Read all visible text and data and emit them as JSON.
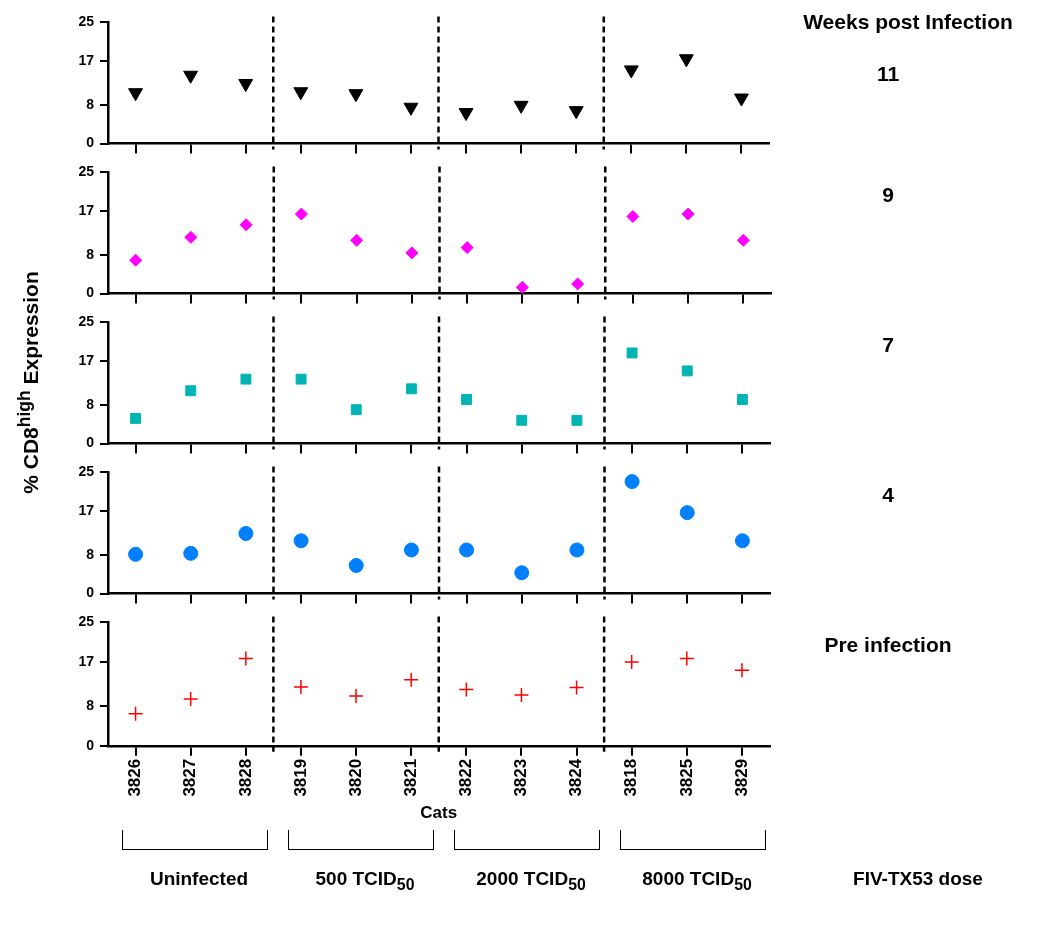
{
  "chart_data": [
    {
      "type": "scatter",
      "annotations": [
        "Weeks post Infection",
        "11"
      ],
      "categories": [
        "3826",
        "3827",
        "3828",
        "3819",
        "3820",
        "3821",
        "3822",
        "3823",
        "3824",
        "3818",
        "3825",
        "3829"
      ],
      "series": [
        {
          "color": "#000000",
          "values": [
            10.5,
            14.1,
            12.4,
            10.7,
            10.3,
            7.5,
            6.4,
            7.9,
            6.8,
            15.2,
            17.5,
            9.4
          ]
        }
      ],
      "marker": "triangle",
      "ylim": [
        0,
        25
      ],
      "yticks": [
        0,
        8,
        17,
        25
      ],
      "tick_labels": "y",
      "grid": false,
      "legend": false
    },
    {
      "type": "scatter",
      "annotations": [
        "9"
      ],
      "categories": [
        "3826",
        "3827",
        "3828",
        "3819",
        "3820",
        "3821",
        "3822",
        "3823",
        "3824",
        "3818",
        "3825",
        "3829"
      ],
      "series": [
        {
          "color": "#ff00ff",
          "values": [
            6.9,
            11.6,
            14.2,
            16.4,
            11.0,
            8.4,
            9.5,
            1.3,
            2.0,
            15.9,
            16.4,
            11.0
          ]
        }
      ],
      "marker": "diamond",
      "ylim": [
        0,
        25
      ],
      "yticks": [
        0,
        8,
        17,
        25
      ],
      "tick_labels": "y",
      "grid": false,
      "legend": false
    },
    {
      "type": "scatter",
      "annotations": [
        "7"
      ],
      "ylabel": "% CD8$^{high}$ Expression",
      "categories": [
        "3826",
        "3827",
        "3828",
        "3819",
        "3820",
        "3821",
        "3822",
        "3823",
        "3824",
        "3818",
        "3825",
        "3829"
      ],
      "series": [
        {
          "color": "#00b4b4",
          "values": [
            5.2,
            10.9,
            13.3,
            13.3,
            7.0,
            11.3,
            9.1,
            4.8,
            4.8,
            18.7,
            15.0,
            9.1
          ]
        }
      ],
      "marker": "square",
      "ylim": [
        0,
        25
      ],
      "yticks": [
        0,
        8,
        17,
        25
      ],
      "tick_labels": "y",
      "grid": false,
      "legend": false
    },
    {
      "type": "scatter",
      "annotations": [
        "4"
      ],
      "categories": [
        "3826",
        "3827",
        "3828",
        "3819",
        "3820",
        "3821",
        "3822",
        "3823",
        "3824",
        "3818",
        "3825",
        "3829"
      ],
      "series": [
        {
          "color": "#0080ff",
          "values": [
            8.1,
            8.3,
            12.4,
            10.9,
            5.8,
            9.0,
            9.0,
            4.3,
            9.0,
            23.1,
            16.7,
            10.9
          ]
        }
      ],
      "marker": "circle",
      "ylim": [
        0,
        25
      ],
      "yticks": [
        0,
        8,
        17,
        25
      ],
      "tick_labels": "y",
      "grid": false,
      "legend": false
    },
    {
      "type": "scatter",
      "xlabel": "Cats",
      "categories": [
        "3826",
        "3827",
        "3828",
        "3819",
        "3820",
        "3821",
        "3822",
        "3823",
        "3824",
        "3818",
        "3825",
        "3829"
      ],
      "series": [
        {
          "color": "#ff0000",
          "values": [
            6.5,
            9.5,
            17.7,
            11.9,
            10.1,
            13.4,
            11.4,
            10.3,
            11.8,
            17.0,
            17.7,
            15.3
          ]
        }
      ],
      "marker": "cross",
      "ylim": [
        0,
        25
      ],
      "yticks": [
        0,
        8,
        17,
        25
      ],
      "grid": false,
      "legend": false,
      "annotations": [
        "Pre infection",
        "Uninfected",
        "500 TCID$_{50}$",
        "2000 TCID$_{50}$",
        "8000 TCID$_{50}$",
        "FIV-TX53 dose"
      ]
    }
  ]
}
